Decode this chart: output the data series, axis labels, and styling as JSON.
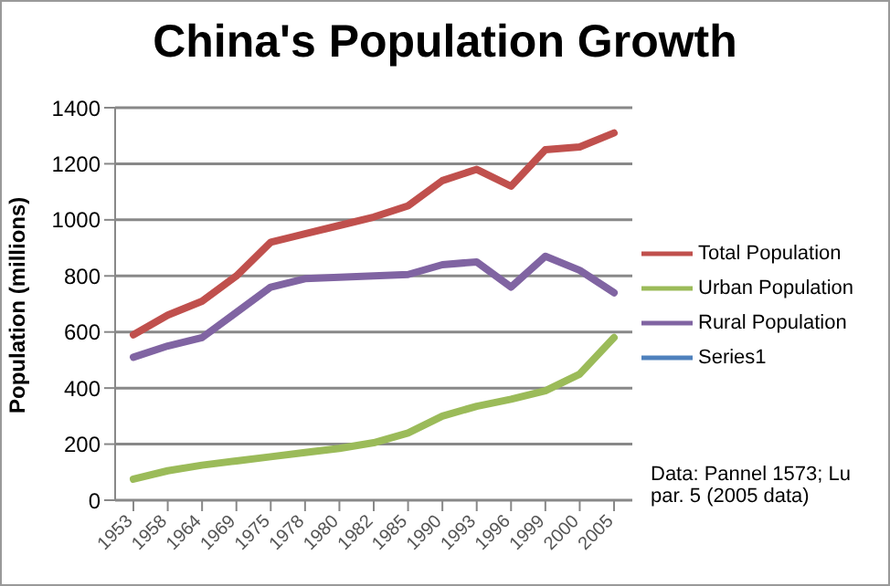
{
  "chart_data": {
    "type": "line",
    "title": "China's Population Growth",
    "ylabel": "Population (millions)",
    "annotations": [
      "Data: Pannel 1573; Lu par. 5 (2005 data)"
    ],
    "categories": [
      "1953",
      "1958",
      "1964",
      "1969",
      "1975",
      "1978",
      "1980",
      "1982",
      "1985",
      "1990",
      "1993",
      "1996",
      "1999",
      "2000",
      "2005"
    ],
    "series": [
      {
        "name": "Total Population",
        "color": "#c0504d",
        "values": [
          590,
          660,
          710,
          800,
          920,
          950,
          980,
          1010,
          1050,
          1140,
          1180,
          1120,
          1250,
          1260,
          1310
        ]
      },
      {
        "name": "Urban Population",
        "color": "#9bbb59",
        "values": [
          75,
          105,
          125,
          140,
          155,
          170,
          185,
          205,
          240,
          300,
          335,
          360,
          390,
          450,
          580
        ]
      },
      {
        "name": "Rural Population",
        "color": "#8064a2",
        "values": [
          510,
          550,
          580,
          670,
          760,
          790,
          795,
          800,
          805,
          840,
          850,
          760,
          870,
          820,
          740
        ]
      },
      {
        "name": "Series1",
        "color": "#4f81bd",
        "values": [
          null,
          null,
          null,
          null,
          null,
          null,
          null,
          null,
          null,
          null,
          null,
          null,
          null,
          null,
          null
        ]
      }
    ],
    "ylim": [
      0,
      1400
    ],
    "yticks": [
      0,
      200,
      400,
      600,
      800,
      1000,
      1200,
      1400
    ],
    "grid": "y",
    "legend": "right",
    "marker": "none",
    "line_style": "solid"
  }
}
